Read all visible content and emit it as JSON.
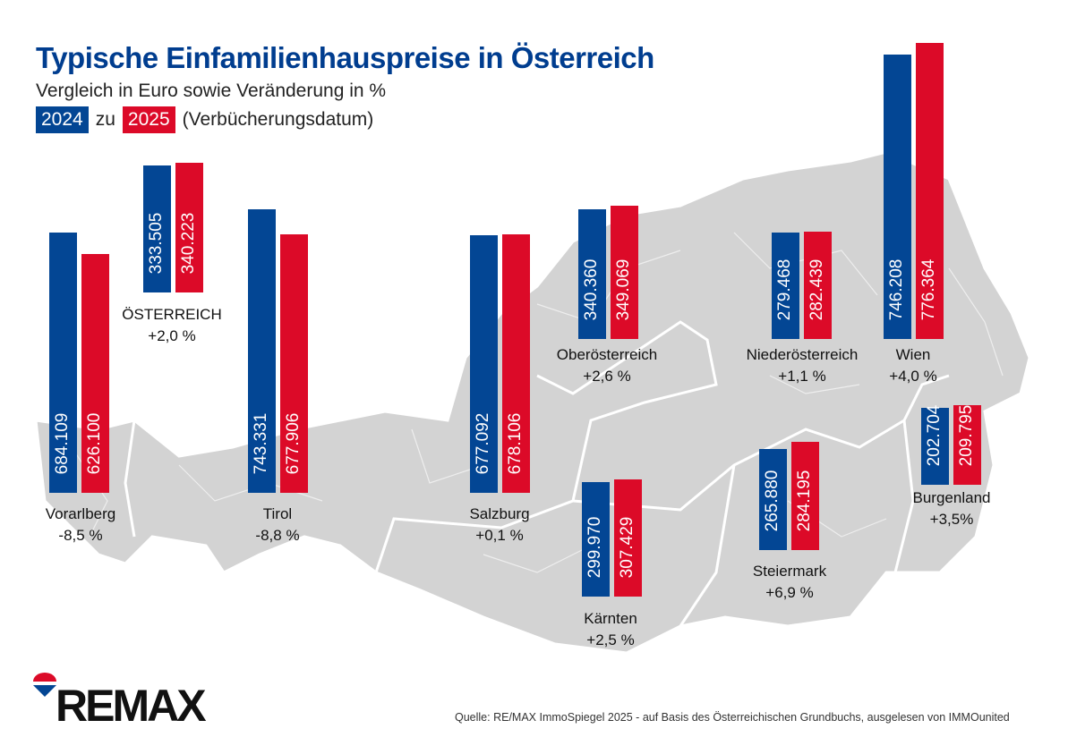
{
  "title": "Typische Einfamilienhauspreise in Österreich",
  "subtitle": "Vergleich in Euro sowie Veränderung in %",
  "legend": {
    "y2024": "2024",
    "connector": "zu",
    "y2025": "2025",
    "note": "(Verbücherungsdatum)"
  },
  "colors": {
    "y2024": "#034694",
    "y2025": "#dc0a28",
    "map": "#d3d3d3"
  },
  "logo_text": "RE/MAX",
  "source": "Quelle: RE/MAX ImmoSpiegel 2025 - auf Basis des Österreichischen Grundbuchs, ausgelesen von IMMOunited",
  "chart_data": {
    "type": "bar",
    "title": "Typische Einfamilienhauspreise in Österreich",
    "series_names": [
      "2024",
      "2025"
    ],
    "unit": "EUR",
    "regions": [
      {
        "name": "Vorarlberg",
        "v2024": 684109,
        "v2025": 626100,
        "label2024": "684.109",
        "label2025": "626.100",
        "change": "-8,5 %"
      },
      {
        "name": "ÖSTERREICH",
        "v2024": 333505,
        "v2025": 340223,
        "label2024": "333.505",
        "label2025": "340.223",
        "change": "+2,0 %"
      },
      {
        "name": "Tirol",
        "v2024": 743331,
        "v2025": 677906,
        "label2024": "743.331",
        "label2025": "677.906",
        "change": "-8,8 %"
      },
      {
        "name": "Salzburg",
        "v2024": 677092,
        "v2025": 678106,
        "label2024": "677.092",
        "label2025": "678.106",
        "change": "+0,1 %"
      },
      {
        "name": "Oberösterreich",
        "v2024": 340360,
        "v2025": 349069,
        "label2024": "340.360",
        "label2025": "349.069",
        "change": "+2,6 %"
      },
      {
        "name": "Niederösterreich",
        "v2024": 279468,
        "v2025": 282439,
        "label2024": "279.468",
        "label2025": "282.439",
        "change": "+1,1 %"
      },
      {
        "name": "Wien",
        "v2024": 746208,
        "v2025": 776364,
        "label2024": "746.208",
        "label2025": "776.364",
        "change": "+4,0 %"
      },
      {
        "name": "Kärnten",
        "v2024": 299970,
        "v2025": 307429,
        "label2024": "299.970",
        "label2025": "307.429",
        "change": "+2,5 %"
      },
      {
        "name": "Steiermark",
        "v2024": 265880,
        "v2025": 284195,
        "label2024": "265.880",
        "label2025": "284.195",
        "change": "+6,9 %"
      },
      {
        "name": "Burgenland",
        "v2024": 202704,
        "v2025": 209795,
        "label2024": "202.704",
        "label2025": "209.795",
        "change": "+3,5%"
      }
    ]
  }
}
